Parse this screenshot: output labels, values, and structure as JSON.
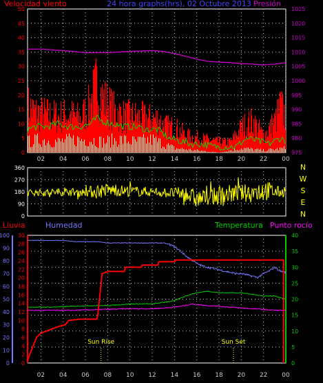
{
  "header": {
    "left_title": "Velocidad viento",
    "center_title": "24 hora graphs(hrs), 02 Octubre 2013",
    "right_title": "Presión"
  },
  "colors": {
    "wind_speed": "#ff0000",
    "wind_avg": "#00dd00",
    "wind_low": "#ccffcc",
    "pressure": "#cc00cc",
    "direction": "#ffff00",
    "rain": "#ff0000",
    "humidity": "#7777ff",
    "temperature": "#00cc00",
    "dewpoint": "#ff00ff",
    "axis_left": "#ff0000",
    "axis_right": "#cc00cc",
    "hum_axis": "#7777ff",
    "temp_axis": "#00cc00",
    "annotation": "#ffff00",
    "grid": "#cccccc"
  },
  "chart_data": [
    {
      "id": "wind",
      "type": "line",
      "title": "24 hora graphs(hrs), 02 Octubre 2013",
      "ylabel_left": "Velocidad viento",
      "ylabel_right": "Presión",
      "xlim": [
        0.8,
        24.0
      ],
      "ylim_left": [
        0,
        50
      ],
      "ylim_right": [
        975,
        1025
      ],
      "x_ticks": [
        "02",
        "04",
        "06",
        "08",
        "10",
        "12",
        "14",
        "16",
        "18",
        "20",
        "22",
        "00"
      ],
      "y_ticks_left": [
        "0",
        "5",
        "10",
        "15",
        "20",
        "25",
        "30",
        "35",
        "40",
        "45",
        "50"
      ],
      "y_ticks_right": [
        "975",
        "980",
        "985",
        "990",
        "995",
        "1000",
        "1005",
        "1010",
        "1015",
        "1020",
        "1025"
      ],
      "series": [
        {
          "name": "gust",
          "axis": "left",
          "style": "spiky",
          "color_key": "wind_speed",
          "x": [
            0.8,
            1.5,
            2.5,
            3.5,
            4.5,
            5.5,
            6.3,
            6.7,
            7.0,
            7.5,
            8.5,
            9.5,
            10.5,
            11.5,
            12.5,
            13.0,
            13.5,
            14.0,
            15.0,
            16.0,
            17.0,
            18.0,
            19.0,
            20.0,
            21.0,
            22.0,
            23.0,
            23.5,
            24.0
          ],
          "y": [
            22,
            19,
            18,
            17,
            18,
            16,
            22,
            28,
            33,
            26,
            20,
            17,
            17,
            16,
            16,
            13,
            12,
            12,
            8,
            7,
            6,
            5,
            5,
            12,
            15,
            8,
            15,
            22,
            17
          ]
        },
        {
          "name": "avg",
          "axis": "left",
          "style": "line",
          "color_key": "wind_avg",
          "x": [
            0.8,
            1.5,
            2.5,
            3.5,
            4.5,
            5.5,
            6.5,
            7.0,
            7.5,
            8.5,
            9.5,
            10.5,
            11.5,
            12.5,
            13.5,
            14.5,
            15.5,
            16.5,
            17.5,
            18.5,
            19.5,
            20.5,
            21.5,
            22.5,
            23.5,
            24.0
          ],
          "y": [
            8,
            9,
            9,
            10,
            9,
            9,
            10,
            12,
            11,
            10,
            9,
            9,
            8,
            8,
            5,
            4,
            3,
            3,
            2,
            2,
            2,
            5,
            4,
            3,
            5,
            4
          ]
        },
        {
          "name": "low",
          "axis": "left",
          "style": "spiky",
          "color_key": "wind_low",
          "x": [
            0.8,
            2.0,
            3.5,
            5.0,
            6.5,
            7.5,
            9.0,
            10.5,
            12.0,
            13.0,
            14.0,
            16.0,
            18.0,
            20.0,
            22.0,
            24.0
          ],
          "y": [
            5,
            6,
            5,
            6,
            6,
            5,
            6,
            5,
            6,
            4,
            2,
            1,
            0,
            2,
            1,
            2
          ]
        },
        {
          "name": "pressure",
          "axis": "right",
          "style": "line",
          "color_key": "pressure",
          "x": [
            0.8,
            2,
            4,
            6,
            8,
            10,
            12,
            13,
            14,
            15,
            16,
            17,
            18,
            19,
            20,
            21,
            22,
            23,
            24
          ],
          "y": [
            1011,
            1011,
            1010.5,
            1009.8,
            1009.8,
            1010.2,
            1010.5,
            1010.2,
            1009.5,
            1008.5,
            1007.5,
            1006.8,
            1006.5,
            1006.3,
            1006.0,
            1005.8,
            1005.5,
            1005.8,
            1006.3
          ]
        }
      ]
    },
    {
      "id": "direction",
      "type": "line",
      "xlim": [
        0.8,
        24.0
      ],
      "ylim": [
        0,
        360
      ],
      "y_ticks": [
        "0",
        "90",
        "180",
        "270",
        "360"
      ],
      "compass_labels": [
        "N",
        "W",
        "S",
        "E",
        "N"
      ],
      "series": [
        {
          "name": "direction",
          "style": "noisy",
          "color_key": "direction",
          "x": [
            0.8,
            2,
            4,
            6,
            7,
            8,
            10,
            12,
            14,
            15,
            16,
            17,
            18,
            19,
            20,
            21,
            22,
            23,
            24
          ],
          "y": [
            175,
            175,
            180,
            178,
            185,
            195,
            185,
            180,
            170,
            165,
            125,
            140,
            150,
            165,
            170,
            175,
            195,
            180,
            175
          ],
          "amp": [
            25,
            25,
            30,
            30,
            60,
            50,
            40,
            35,
            40,
            60,
            70,
            60,
            70,
            70,
            60,
            80,
            90,
            50,
            30
          ]
        }
      ]
    },
    {
      "id": "climate",
      "type": "line",
      "ylabel_left": "Lluvia",
      "ylabel_left2": "Humedad",
      "ylabel_right": "Temperatura",
      "ylabel_right2": "Punto rocío",
      "xlim": [
        0.8,
        24.0
      ],
      "ylim_rain": [
        0,
        30
      ],
      "ylim_hum": [
        0,
        100
      ],
      "ylim_temp": [
        0,
        40
      ],
      "x_ticks": [
        "02",
        "04",
        "06",
        "08",
        "10",
        "12",
        "14",
        "16",
        "18",
        "20",
        "22",
        "00"
      ],
      "y_ticks_rain": [
        "0",
        "2",
        "4",
        "6",
        "8",
        "10",
        "12",
        "14",
        "16",
        "18",
        "20",
        "22",
        "24",
        "26",
        "28",
        "30"
      ],
      "y_ticks_hum": [
        "0",
        "10",
        "20",
        "30",
        "40",
        "50",
        "60",
        "70",
        "80",
        "90",
        "100"
      ],
      "y_ticks_temp": [
        "0",
        "5",
        "10",
        "15",
        "20",
        "25",
        "30",
        "35",
        "40"
      ],
      "annotations": [
        {
          "label": "Sun Rise",
          "x": 7.4
        },
        {
          "label": "Sun Set",
          "x": 19.3
        }
      ],
      "series": [
        {
          "name": "Lluvia",
          "axis": "rain",
          "color_key": "rain",
          "step": true,
          "x": [
            0.8,
            1.0,
            1.3,
            1.6,
            2.0,
            2.5,
            3.0,
            3.5,
            4.2,
            4.5,
            5.5,
            7.0,
            7.1,
            7.3,
            7.5,
            8.0,
            9.5,
            9.6,
            11.0,
            11.1,
            12.5,
            12.6,
            14.0,
            14.1,
            23.8,
            23.8
          ],
          "y": [
            0.5,
            2,
            4,
            6,
            7,
            7.5,
            8,
            8.5,
            9,
            10,
            10.3,
            10.3,
            11,
            16,
            21,
            21.5,
            21.5,
            22.5,
            22.5,
            23,
            23,
            23.8,
            23.8,
            24.2,
            24.2,
            0
          ]
        },
        {
          "name": "Humedad",
          "axis": "hum",
          "color_key": "humidity",
          "x": [
            0.8,
            2,
            3,
            4,
            5,
            6,
            7,
            8,
            9,
            10,
            11,
            12,
            13,
            13.5,
            14,
            14.5,
            15,
            15.5,
            16,
            16.5,
            17,
            17.5,
            18,
            18.5,
            19,
            19.5,
            20,
            20.5,
            21,
            21.5,
            22,
            22.5,
            23,
            23.5,
            24
          ],
          "y": [
            96,
            96,
            96,
            96,
            95,
            95,
            95,
            94,
            94,
            94,
            94,
            94,
            94,
            93,
            91,
            88,
            84,
            81,
            78,
            76,
            75,
            74,
            73,
            72,
            71,
            70,
            70,
            69,
            68,
            67,
            70,
            72,
            75,
            72,
            71
          ]
        },
        {
          "name": "Temperatura",
          "axis": "temp",
          "color_key": "temperature",
          "x": [
            0.8,
            3,
            5,
            7,
            8,
            10,
            12,
            13,
            14,
            15,
            16,
            17,
            18,
            19,
            20,
            21,
            22,
            23,
            24
          ],
          "y": [
            17.5,
            17.5,
            17.8,
            18,
            18,
            18.5,
            18.5,
            19,
            19.5,
            21,
            22,
            22.5,
            22,
            22,
            22,
            21.5,
            21,
            21,
            20
          ]
        },
        {
          "name": "Punto rocío",
          "axis": "temp",
          "color_key": "dewpoint",
          "x": [
            0.8,
            3,
            5,
            7,
            8,
            10,
            12,
            13,
            14,
            15,
            15.5,
            16,
            17,
            18,
            19,
            20,
            21,
            22,
            23,
            24
          ],
          "y": [
            16.5,
            16.5,
            16.5,
            16.7,
            16.8,
            17,
            17,
            17.2,
            17.5,
            18,
            18.5,
            18.3,
            18,
            17.8,
            17.5,
            17.2,
            17,
            16.8,
            16.5,
            16.5
          ]
        }
      ]
    }
  ]
}
